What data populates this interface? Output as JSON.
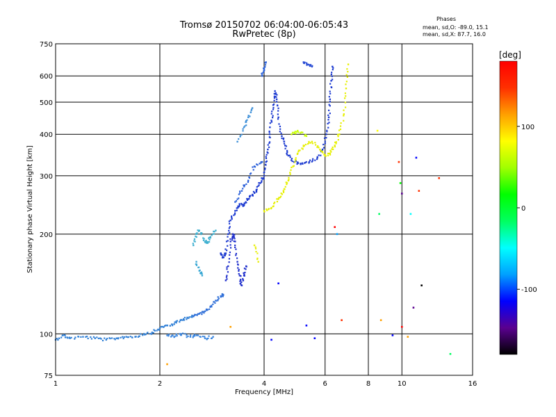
{
  "chart_data": {
    "type": "scatter",
    "title": "Tromsø 20150702 06:04:00-06:05:43",
    "subtitle": "RwPretec (8p)",
    "xlabel": "Frequency [MHz]",
    "ylabel": "Stationary phase Virtual Height [km]",
    "x_scale": "log",
    "y_scale": "log",
    "xlim": [
      1,
      16
    ],
    "ylim": [
      75,
      750
    ],
    "x_ticks": [
      1,
      2,
      4,
      6,
      8,
      10,
      16
    ],
    "y_ticks": [
      75,
      100,
      200,
      300,
      400,
      500,
      600,
      750
    ],
    "grid": true,
    "phase_annotation": {
      "title": "Phases",
      "o_line": "mean, sd,O: -89.0, 15.1",
      "x_line": "mean, sd,X:  87.7, 16.0"
    },
    "colorbar": {
      "label": "[deg]",
      "range": [
        -180,
        180
      ],
      "ticks": [
        100,
        0,
        -100
      ],
      "colormap": [
        "#000000",
        "#5a0090",
        "#0000ff",
        "#00a0ff",
        "#00ffff",
        "#00ff60",
        "#00ff00",
        "#a0ff00",
        "#ffff00",
        "#ffa000",
        "#ff3000",
        "#ff0000"
      ]
    },
    "traces": [
      {
        "phase": -100,
        "color": "#2f7fd6",
        "points": [
          [
            1.0,
            96
          ],
          [
            1.05,
            99
          ],
          [
            1.1,
            97
          ],
          [
            1.2,
            98
          ],
          [
            1.3,
            97
          ],
          [
            1.4,
            96
          ],
          [
            1.5,
            97
          ],
          [
            1.6,
            98
          ],
          [
            1.7,
            98
          ],
          [
            1.8,
            100
          ],
          [
            1.9,
            101
          ],
          [
            2.0,
            104
          ],
          [
            2.1,
            106
          ],
          [
            2.2,
            107
          ],
          [
            2.3,
            110
          ],
          [
            2.4,
            112
          ],
          [
            2.5,
            113
          ]
        ]
      },
      {
        "phase": -105,
        "color": "#2f6fd8",
        "points": [
          [
            2.5,
            113
          ],
          [
            2.6,
            115
          ],
          [
            2.7,
            117
          ],
          [
            2.8,
            121
          ],
          [
            2.9,
            126
          ],
          [
            3.0,
            130
          ],
          [
            3.05,
            131
          ]
        ]
      },
      {
        "phase": -110,
        "color": "#1c3ad0",
        "points": [
          [
            3.0,
            175
          ],
          [
            3.05,
            170
          ],
          [
            3.1,
            175
          ],
          [
            3.15,
            200
          ],
          [
            3.2,
            220
          ],
          [
            3.3,
            235
          ],
          [
            3.4,
            245
          ],
          [
            3.5,
            245
          ],
          [
            3.6,
            255
          ],
          [
            3.7,
            262
          ],
          [
            3.8,
            270
          ],
          [
            3.9,
            285
          ],
          [
            4.0,
            300
          ],
          [
            4.05,
            330
          ],
          [
            4.1,
            360
          ],
          [
            4.15,
            400
          ],
          [
            4.2,
            440
          ],
          [
            4.25,
            490
          ],
          [
            4.3,
            540
          ],
          [
            4.35,
            510
          ],
          [
            4.4,
            450
          ],
          [
            4.5,
            395
          ],
          [
            4.6,
            370
          ],
          [
            4.7,
            345
          ],
          [
            4.9,
            330
          ],
          [
            5.1,
            325
          ],
          [
            5.4,
            330
          ],
          [
            5.7,
            340
          ],
          [
            5.9,
            360
          ],
          [
            6.05,
            400
          ],
          [
            6.15,
            450
          ],
          [
            6.2,
            510
          ],
          [
            6.25,
            580
          ],
          [
            6.3,
            640
          ]
        ]
      },
      {
        "phase": -115,
        "color": "#1f2fcc",
        "points": [
          [
            3.1,
            145
          ],
          [
            3.15,
            160
          ],
          [
            3.2,
            190
          ],
          [
            3.25,
            200
          ],
          [
            3.3,
            190
          ],
          [
            3.35,
            165
          ],
          [
            3.4,
            150
          ],
          [
            3.45,
            140
          ],
          [
            3.5,
            150
          ],
          [
            3.55,
            160
          ]
        ]
      },
      {
        "phase": -100,
        "color": "#2a5fd9",
        "points": [
          [
            3.3,
            250
          ],
          [
            3.45,
            270
          ],
          [
            3.6,
            290
          ],
          [
            3.75,
            320
          ],
          [
            3.95,
            330
          ]
        ]
      },
      {
        "phase": -95,
        "color": "#3fb0d0",
        "points": [
          [
            2.5,
            185
          ],
          [
            2.55,
            200
          ],
          [
            2.6,
            205
          ],
          [
            2.7,
            190
          ],
          [
            2.75,
            188
          ],
          [
            2.8,
            195
          ],
          [
            2.9,
            205
          ]
        ]
      },
      {
        "phase": -95,
        "color": "#3aa8d4",
        "points": [
          [
            2.55,
            165
          ],
          [
            2.6,
            155
          ],
          [
            2.65,
            150
          ]
        ]
      },
      {
        "phase": -100,
        "color": "#3d8fd8",
        "points": [
          [
            3.35,
            380
          ],
          [
            3.5,
            420
          ],
          [
            3.6,
            450
          ],
          [
            3.7,
            480
          ]
        ]
      },
      {
        "phase": -100,
        "color": "#2d64dc",
        "points": [
          [
            3.95,
            600
          ],
          [
            4.0,
            630
          ],
          [
            4.05,
            660
          ]
        ]
      },
      {
        "phase": -110,
        "color": "#2a4dd4",
        "points": [
          [
            5.2,
            660
          ],
          [
            5.35,
            650
          ],
          [
            5.5,
            640
          ]
        ]
      },
      {
        "phase": 90,
        "color": "#e6f000",
        "points": [
          [
            4.0,
            235
          ],
          [
            4.2,
            240
          ],
          [
            4.4,
            255
          ],
          [
            4.55,
            270
          ],
          [
            4.7,
            290
          ],
          [
            4.85,
            320
          ],
          [
            5.0,
            350
          ],
          [
            5.2,
            370
          ],
          [
            5.5,
            380
          ],
          [
            5.8,
            360
          ],
          [
            6.0,
            345
          ],
          [
            6.2,
            350
          ],
          [
            6.4,
            370
          ],
          [
            6.6,
            400
          ],
          [
            6.8,
            460
          ],
          [
            6.9,
            550
          ],
          [
            7.0,
            650
          ]
        ]
      },
      {
        "phase": 95,
        "color": "#e8ef10",
        "points": [
          [
            3.75,
            185
          ],
          [
            3.85,
            165
          ]
        ]
      },
      {
        "phase": 70,
        "color": "#c8ff00",
        "points": [
          [
            4.8,
            400
          ],
          [
            5.0,
            410
          ],
          [
            5.3,
            395
          ]
        ]
      },
      {
        "phase": -95,
        "color": "#3a86e0",
        "points": [
          [
            2.1,
            99
          ],
          [
            2.2,
            98
          ],
          [
            2.3,
            100
          ],
          [
            2.45,
            98
          ],
          [
            2.55,
            99
          ],
          [
            2.7,
            97
          ],
          [
            2.85,
            98
          ]
        ]
      }
    ],
    "scattered_points": [
      {
        "x": 2.1,
        "y": 81,
        "phase": 130
      },
      {
        "x": 3.2,
        "y": 105,
        "phase": 100
      },
      {
        "x": 4.2,
        "y": 96,
        "phase": -110
      },
      {
        "x": 4.4,
        "y": 142,
        "phase": -100
      },
      {
        "x": 5.3,
        "y": 106,
        "phase": -120
      },
      {
        "x": 5.6,
        "y": 97,
        "phase": -100
      },
      {
        "x": 6.4,
        "y": 210,
        "phase": 170
      },
      {
        "x": 6.5,
        "y": 200,
        "phase": -90
      },
      {
        "x": 6.7,
        "y": 110,
        "phase": 140
      },
      {
        "x": 8.5,
        "y": 410,
        "phase": 95
      },
      {
        "x": 8.6,
        "y": 230,
        "phase": -30
      },
      {
        "x": 8.7,
        "y": 110,
        "phase": 120
      },
      {
        "x": 9.4,
        "y": 99,
        "phase": -120
      },
      {
        "x": 9.8,
        "y": 330,
        "phase": 140
      },
      {
        "x": 9.9,
        "y": 285,
        "phase": 20
      },
      {
        "x": 10.0,
        "y": 265,
        "phase": -160
      },
      {
        "x": 10.0,
        "y": 105,
        "phase": 170
      },
      {
        "x": 10.4,
        "y": 98,
        "phase": 130
      },
      {
        "x": 10.6,
        "y": 230,
        "phase": -60
      },
      {
        "x": 10.8,
        "y": 120,
        "phase": -140
      },
      {
        "x": 11.0,
        "y": 340,
        "phase": -110
      },
      {
        "x": 11.2,
        "y": 270,
        "phase": 160
      },
      {
        "x": 11.4,
        "y": 140,
        "phase": -180
      },
      {
        "x": 12.8,
        "y": 295,
        "phase": 150
      },
      {
        "x": 13.8,
        "y": 87,
        "phase": -20
      }
    ]
  }
}
